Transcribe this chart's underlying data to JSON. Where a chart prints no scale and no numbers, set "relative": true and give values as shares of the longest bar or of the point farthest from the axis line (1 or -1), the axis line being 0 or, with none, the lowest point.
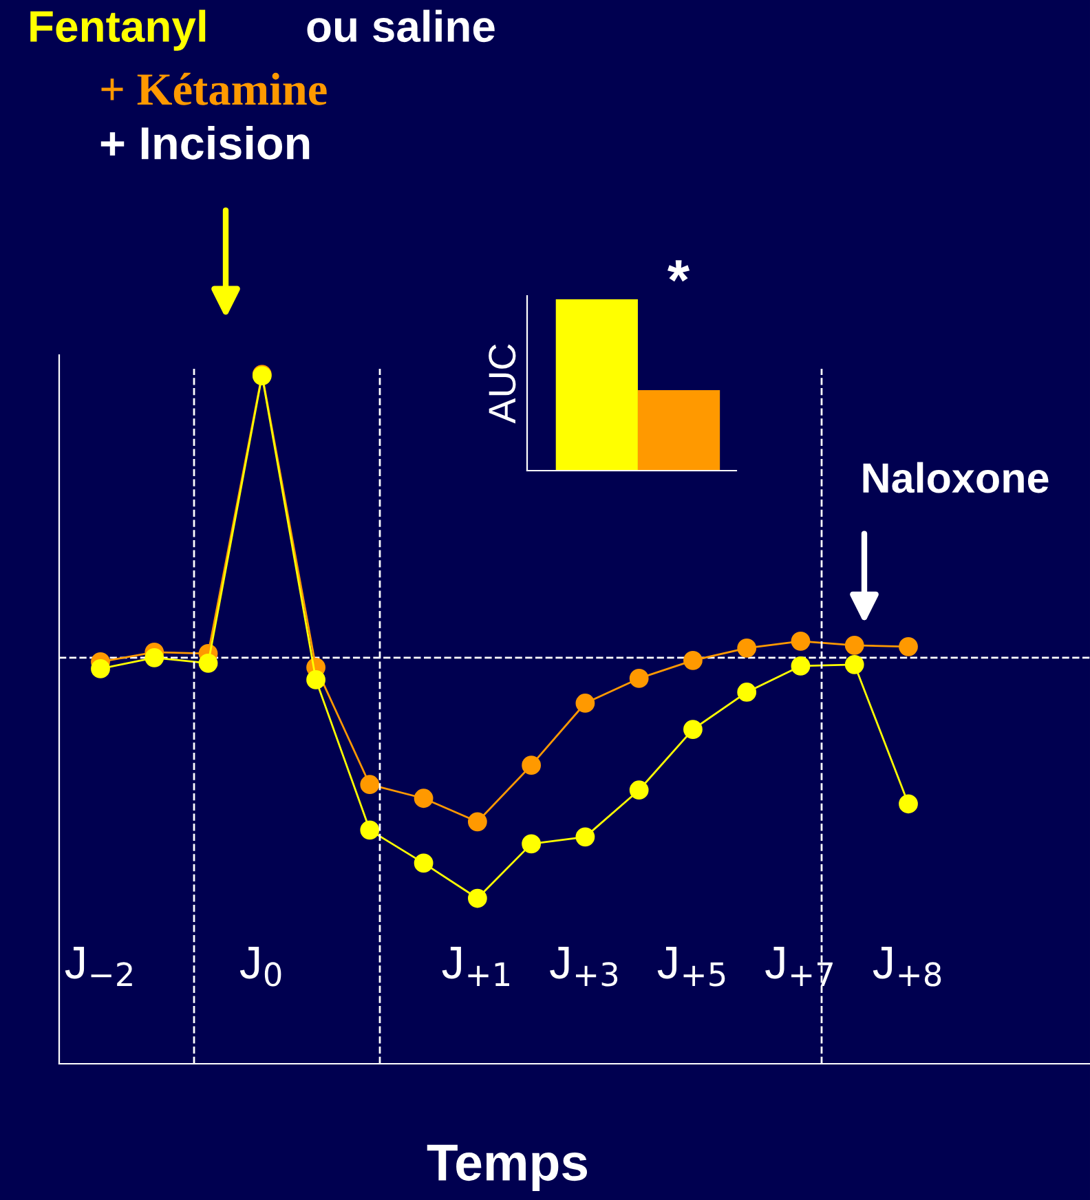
{
  "chart_data": [
    {
      "type": "line",
      "relative": true,
      "xlabel": "Temps",
      "marker": "circle",
      "line_style": "solid",
      "categories": [
        "J$_{−2}$",
        null,
        null,
        "J$_{0}$",
        null,
        null,
        null,
        "J$_{+1}$",
        null,
        "J$_{+3}$",
        null,
        "J$_{+5}$",
        null,
        "J$_{+7}$",
        null,
        "J$_{+8}$"
      ],
      "series": [
        {
          "color": "#ff9900",
          "values": [
            0.583,
            0.597,
            0.595,
            1.0,
            0.575,
            0.405,
            0.385,
            0.351,
            0.433,
            0.523,
            0.559,
            0.585,
            0.603,
            0.613,
            0.607,
            0.605
          ]
        },
        {
          "color": "#ffff00",
          "values": [
            0.573,
            0.589,
            0.581,
            0.998,
            0.557,
            0.339,
            0.291,
            0.24,
            0.319,
            0.329,
            0.397,
            0.485,
            0.539,
            0.577,
            0.579,
            0.377
          ]
        }
      ],
      "ref_lines": [
        {
          "axis": "y",
          "value": 0.589,
          "color": "#ffffff",
          "line_style": "dashed"
        }
      ],
      "annotations": [
        "Fentanyl",
        "ou saline",
        "+ Kétamine",
        "+ Incision",
        "Naloxone"
      ]
    },
    {
      "type": "bar",
      "relative": true,
      "ylabel": "AUC",
      "categories": [
        null,
        null
      ],
      "values": [
        1.0,
        0.47
      ],
      "colors": [
        "#ffff00",
        "#ff9900"
      ],
      "annotations": [
        "*"
      ]
    }
  ]
}
